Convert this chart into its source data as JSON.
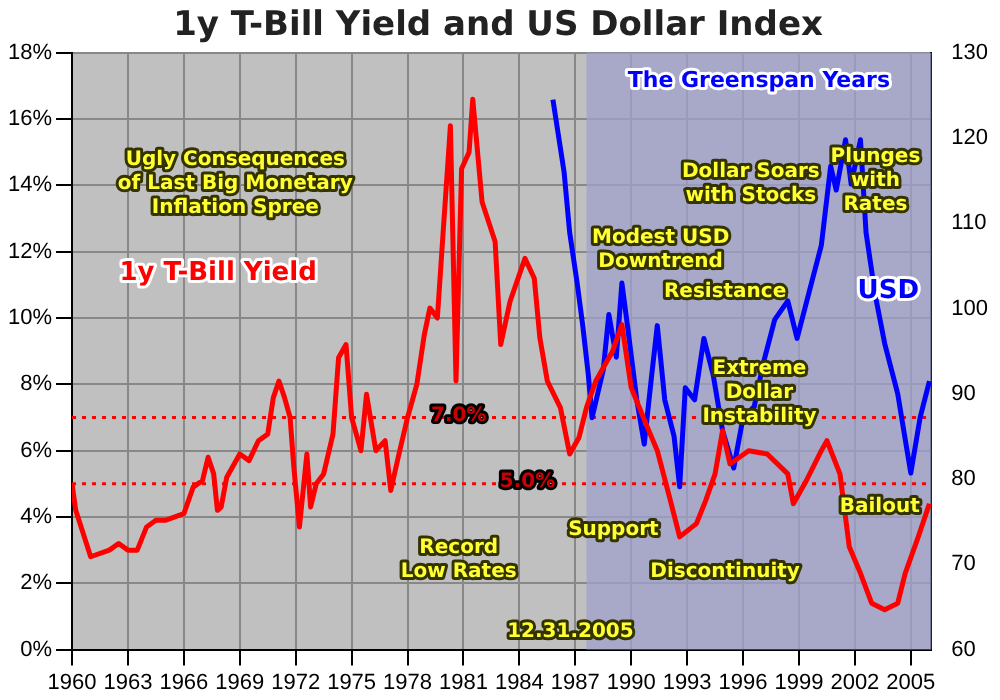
{
  "chart_data": {
    "type": "line",
    "title": "1y T-Bill Yield and US Dollar Index",
    "xlim": [
      1960,
      2006.1
    ],
    "xticks": [
      1960,
      1963,
      1966,
      1969,
      1972,
      1975,
      1978,
      1981,
      1984,
      1987,
      1990,
      1993,
      1996,
      1999,
      2002,
      2005
    ],
    "ylim": [
      0,
      18
    ],
    "yticks": [
      {
        "value": 0,
        "label": "0%"
      },
      {
        "value": 2,
        "label": "2%"
      },
      {
        "value": 4,
        "label": "4%"
      },
      {
        "value": 6,
        "label": "6%"
      },
      {
        "value": 8,
        "label": "8%"
      },
      {
        "value": 10,
        "label": "10%"
      },
      {
        "value": 12,
        "label": "12%"
      },
      {
        "value": 14,
        "label": "14%"
      },
      {
        "value": 16,
        "label": "16%"
      },
      {
        "value": 18,
        "label": "18%"
      }
    ],
    "y2lim": [
      60,
      130
    ],
    "y2ticks": [
      60,
      70,
      80,
      90,
      100,
      110,
      120,
      130
    ],
    "grid": true,
    "legend": false,
    "marker": "none",
    "line_style": "solid",
    "series": [
      {
        "name": "1y T-Bill Yield",
        "color": "#ff0000",
        "x": [
          1960,
          1960.2,
          1961,
          1962,
          1962.5,
          1963,
          1963.5,
          1964,
          1964.5,
          1965,
          1966,
          1966.5,
          1967,
          1967.3,
          1967.6,
          1967.8,
          1968,
          1968.3,
          1968.7,
          1969,
          1969.5,
          1970,
          1970.5,
          1970.8,
          1971.1,
          1971.4,
          1971.7,
          1971.9,
          1972.2,
          1972.6,
          1972.8,
          1973.1,
          1973.5,
          1974,
          1974.3,
          1974.7,
          1975,
          1975.5,
          1975.8,
          1976.3,
          1976.8,
          1977.1,
          1977.5,
          1978,
          1978.5,
          1978.9,
          1979.2,
          1979.6,
          1979.9,
          1980.3,
          1980.6,
          1980.9,
          1981.3,
          1981.5,
          1982,
          1982.7,
          1983,
          1983.5,
          1984.3,
          1984.8,
          1985.1,
          1985.5,
          1986.2,
          1986.7,
          1987.2,
          1987.6,
          1988.1,
          1989,
          1989.5,
          1990,
          1990.8,
          1991.4,
          1992.1,
          1992.6,
          1993.5,
          1994,
          1994.5,
          1994.9,
          1995.3,
          1996.3,
          1997.3,
          1998.4,
          1998.7,
          1999.4,
          2000.2,
          2000.5,
          2001.2,
          2001.7,
          2002.3,
          2002.9,
          2003.6,
          2004.3,
          2004.7,
          2005.4,
          2006
        ],
        "values": [
          5.0,
          4.2,
          2.8,
          3.0,
          3.2,
          3.0,
          3.0,
          3.7,
          3.9,
          3.9,
          4.1,
          4.9,
          5.1,
          5.8,
          5.3,
          4.2,
          4.3,
          5.2,
          5.6,
          5.9,
          5.7,
          6.3,
          6.5,
          7.6,
          8.1,
          7.6,
          7.0,
          5.5,
          3.7,
          5.9,
          4.3,
          5.0,
          5.3,
          6.5,
          8.8,
          9.2,
          7.0,
          6.0,
          7.7,
          6.0,
          6.3,
          4.8,
          5.8,
          7.0,
          8.0,
          9.5,
          10.3,
          10.0,
          12.5,
          15.8,
          8.1,
          14.5,
          15.0,
          16.6,
          13.5,
          12.3,
          9.2,
          10.5,
          11.8,
          11.2,
          9.4,
          8.1,
          7.3,
          5.9,
          6.4,
          7.3,
          8.1,
          9.0,
          9.8,
          7.9,
          6.8,
          6.0,
          4.5,
          3.4,
          3.8,
          4.5,
          5.3,
          6.6,
          5.6,
          6.0,
          5.9,
          5.3,
          4.4,
          5.1,
          6.0,
          6.3,
          5.3,
          3.1,
          2.3,
          1.4,
          1.2,
          1.4,
          2.3,
          3.4,
          4.4
        ]
      },
      {
        "name": "USD",
        "color": "#0000ff",
        "axis": "y2",
        "x": [
          1985.8,
          1986.4,
          1986.7,
          1987.1,
          1987.4,
          1987.7,
          1987.9,
          1988.5,
          1988.8,
          1989.2,
          1989.5,
          1989.8,
          1990.3,
          1990.7,
          1991.1,
          1991.4,
          1991.8,
          1992.3,
          1992.6,
          1992.9,
          1993.4,
          1993.9,
          1994.4,
          1994.9,
          1995.5,
          1996,
          1996.6,
          1997.1,
          1997.7,
          1998.4,
          1998.9,
          1999.6,
          2000.2,
          2000.7,
          2001,
          2001.5,
          2001.8,
          2002.3,
          2002.6,
          2003.1,
          2003.6,
          2004.3,
          2005,
          2005.5,
          2006
        ],
        "values": [
          124.5,
          116,
          108.9,
          103,
          98,
          92.2,
          87.2,
          92.8,
          99.3,
          94.3,
          103,
          98,
          89.3,
          84.1,
          92.2,
          98,
          89.3,
          85,
          79.1,
          90.7,
          89.3,
          96.5,
          92.2,
          85.7,
          81.3,
          87.2,
          88.5,
          93.7,
          98.7,
          100.9,
          96.5,
          102.4,
          107.4,
          116.7,
          113.9,
          119.8,
          114.6,
          119.8,
          108.9,
          101.5,
          95.9,
          90,
          80.7,
          87.2,
          91.5
        ]
      }
    ],
    "ref_lines": [
      {
        "axis": "y",
        "value": 7.0,
        "label": "7.0%",
        "color": "#ff0000",
        "line_style": "dotted"
      },
      {
        "axis": "y",
        "value": 5.0,
        "label": "5.0%",
        "color": "#ff0000",
        "line_style": "dotted"
      }
    ],
    "bands": [
      {
        "axis": "x",
        "from": 1987.6,
        "to": 2006.1,
        "label": "The Greenspan Years",
        "color": "#a0a0cc"
      }
    ],
    "annotations": [
      "Ugly Consequences\nof Last Big Monetary\nInflation Spree",
      "Modest USD\nDowntrend",
      "Resistance",
      "Dollar Soars\nwith Stocks",
      "Plunges\nwith\nRates",
      "Extreme\nDollar\nInstability",
      "Support",
      "Bailout",
      "Discontinuity",
      "Record\nLow Rates",
      "12.31.2005"
    ]
  }
}
